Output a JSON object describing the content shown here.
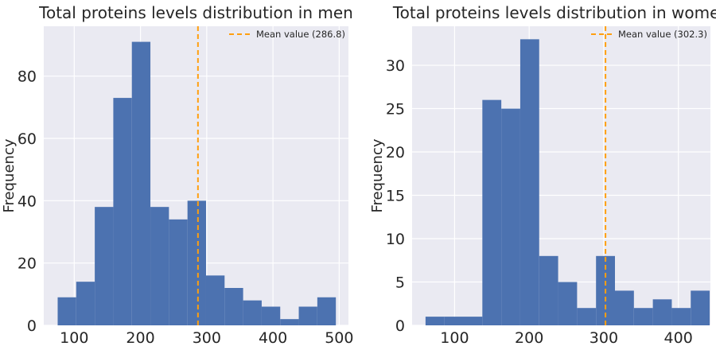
{
  "chart_data": [
    {
      "type": "bar",
      "title": "Total proteins levels distribution in men",
      "xlabel": "",
      "ylabel": "Frequency",
      "xlim": [
        54,
        514
      ],
      "ylim": [
        0,
        96
      ],
      "xticks": [
        100,
        200,
        300,
        400,
        500
      ],
      "yticks": [
        0,
        20,
        40,
        60,
        80
      ],
      "bin_edges": [
        75,
        103,
        131,
        159,
        187,
        215,
        243,
        271,
        299,
        327,
        355,
        383,
        411,
        439,
        467,
        495
      ],
      "values": [
        9,
        14,
        38,
        73,
        91,
        38,
        34,
        40,
        16,
        12,
        8,
        6,
        2,
        6,
        9
      ],
      "mean": 286.8,
      "legend": {
        "label": "Mean value (286.8)",
        "position": "top-right"
      },
      "grid": true,
      "colors": {
        "bar": "#4c72b0",
        "mean_line": "#ff9f10",
        "background": "#eaeaf2"
      }
    },
    {
      "type": "bar",
      "title": "Total proteins levels distribution in women",
      "xlabel": "",
      "ylabel": "Frequency",
      "xlim": [
        43,
        443
      ],
      "ylim": [
        0,
        34.5
      ],
      "xticks": [
        100,
        200,
        300,
        400
      ],
      "yticks": [
        0,
        5,
        10,
        15,
        20,
        25,
        30
      ],
      "bin_edges": [
        61,
        86.4,
        111.8,
        137.2,
        162.6,
        188,
        213.4,
        238.8,
        264.2,
        289.6,
        315,
        340.4,
        365.8,
        391.2,
        416.6,
        442
      ],
      "values": [
        1,
        1,
        1,
        26,
        25,
        33,
        8,
        5,
        2,
        8,
        4,
        2,
        3,
        2,
        4
      ],
      "mean": 302.3,
      "legend": {
        "label": "Mean value (302.3)",
        "position": "top-right"
      },
      "grid": true,
      "colors": {
        "bar": "#4c72b0",
        "mean_line": "#ff9f10",
        "background": "#eaeaf2"
      }
    }
  ]
}
